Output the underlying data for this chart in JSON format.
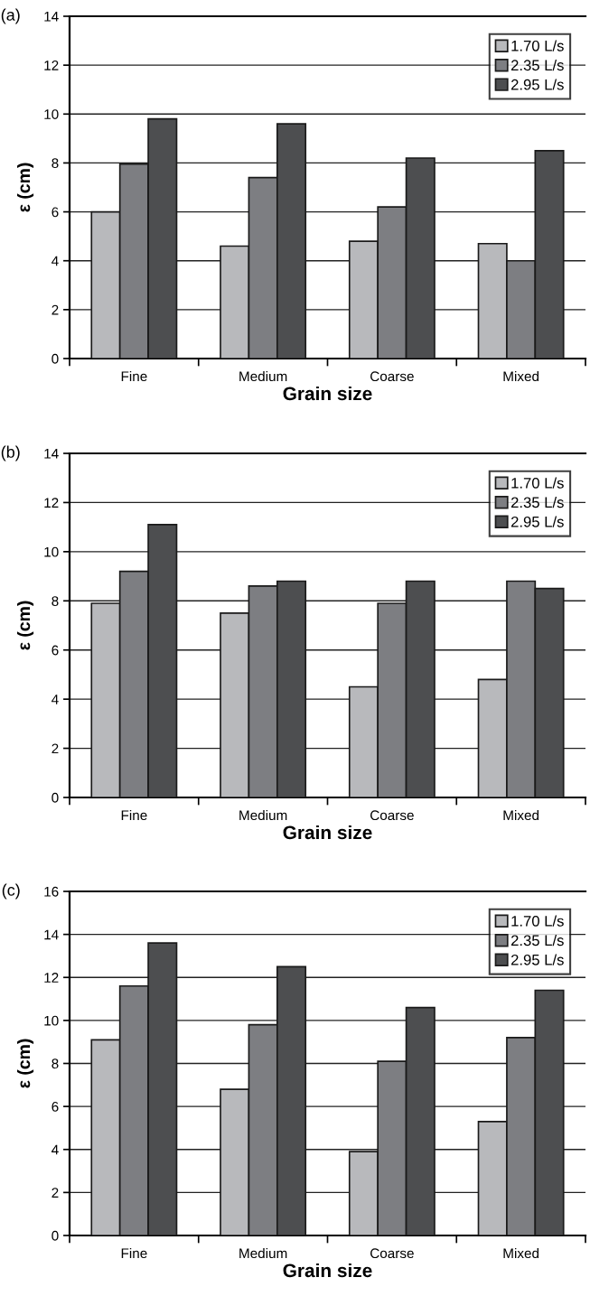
{
  "chart_data": [
    {
      "type": "bar",
      "title": "(a)",
      "xlabel": "Grain size",
      "ylabel": "ε (cm)",
      "categories": [
        "Fine",
        "Medium",
        "Coarse",
        "Mixed"
      ],
      "series": [
        {
          "name": "1.70 L/s",
          "color": "#b8b9bc",
          "values": [
            6.0,
            4.6,
            4.8,
            4.7
          ]
        },
        {
          "name": "2.35 L/s",
          "color": "#7d7e82",
          "values": [
            7.95,
            7.4,
            6.2,
            4.0
          ]
        },
        {
          "name": "2.95 L/s",
          "color": "#4d4e50",
          "values": [
            9.8,
            9.6,
            8.2,
            8.5
          ]
        }
      ],
      "ylim": [
        0,
        14
      ],
      "yticks": [
        0,
        2,
        4,
        6,
        8,
        10,
        12,
        14
      ],
      "grid": "y",
      "legend": "top right"
    },
    {
      "type": "bar",
      "title": "(b)",
      "xlabel": "Grain size",
      "ylabel": "ε (cm)",
      "categories": [
        "Fine",
        "Medium",
        "Coarse",
        "Mixed"
      ],
      "series": [
        {
          "name": "1.70 L/s",
          "color": "#b8b9bc",
          "values": [
            7.9,
            7.5,
            4.5,
            4.8
          ]
        },
        {
          "name": "2.35 L/s",
          "color": "#7d7e82",
          "values": [
            9.2,
            8.6,
            7.9,
            8.8
          ]
        },
        {
          "name": "2.95 L/s",
          "color": "#4d4e50",
          "values": [
            11.1,
            8.8,
            8.8,
            8.5
          ]
        }
      ],
      "ylim": [
        0,
        14
      ],
      "yticks": [
        0,
        2,
        4,
        6,
        8,
        10,
        12,
        14
      ],
      "grid": "y",
      "legend": "top right"
    },
    {
      "type": "bar",
      "title": "(c)",
      "xlabel": "Grain size",
      "ylabel": "ε (cm)",
      "categories": [
        "Fine",
        "Medium",
        "Coarse",
        "Mixed"
      ],
      "series": [
        {
          "name": "1.70 L/s",
          "color": "#b8b9bc",
          "values": [
            9.1,
            6.8,
            3.9,
            5.3
          ]
        },
        {
          "name": "2.35 L/s",
          "color": "#7d7e82",
          "values": [
            11.6,
            9.8,
            8.1,
            9.2
          ]
        },
        {
          "name": "2.95 L/s",
          "color": "#4d4e50",
          "values": [
            13.6,
            12.5,
            10.6,
            11.4
          ]
        }
      ],
      "ylim": [
        0,
        16
      ],
      "yticks": [
        0,
        2,
        4,
        6,
        8,
        10,
        12,
        14,
        16
      ],
      "grid": "y",
      "legend": "top right"
    }
  ]
}
